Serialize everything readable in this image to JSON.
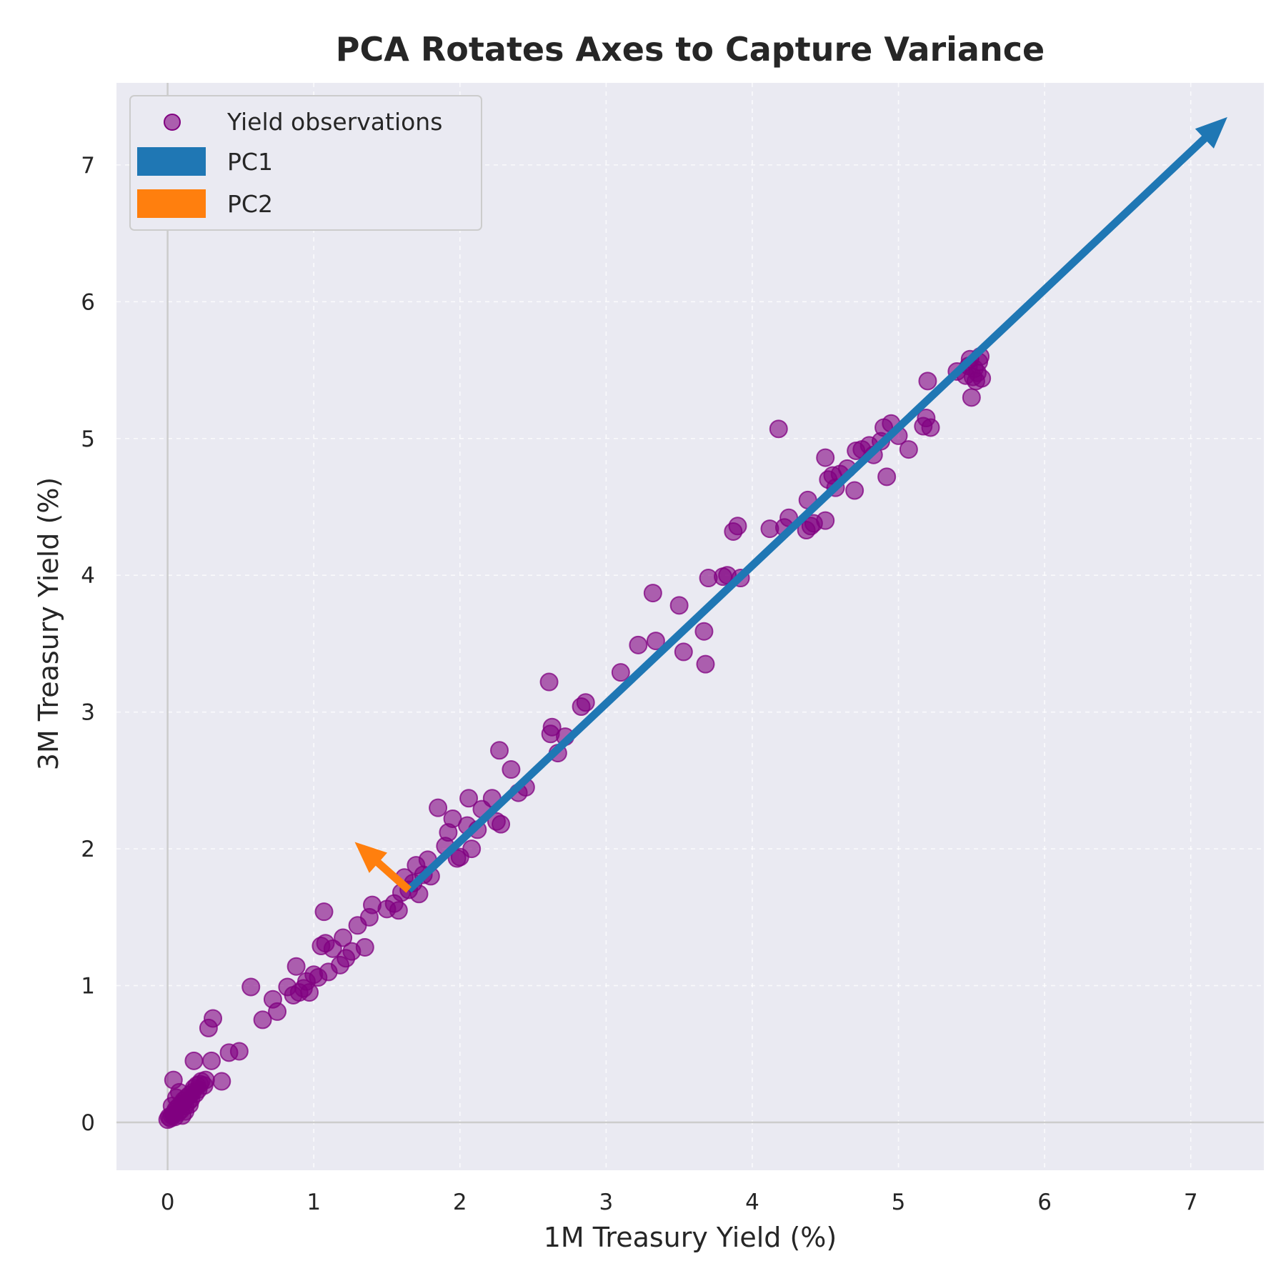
{
  "chart_data": {
    "type": "scatter",
    "title": "PCA Rotates Axes to Capture Variance",
    "xlabel": "1M Treasury Yield (%)",
    "ylabel": "3M Treasury Yield (%)",
    "xlim": [
      -0.35,
      7.5
    ],
    "ylim": [
      -0.35,
      7.6
    ],
    "xticks": [
      0,
      1,
      2,
      3,
      4,
      5,
      6,
      7
    ],
    "yticks": [
      0,
      1,
      2,
      3,
      4,
      5,
      6,
      7
    ],
    "grid": true,
    "legend_position": "top-left",
    "legend": [
      {
        "label": "Yield observations",
        "kind": "marker",
        "color": "#800080"
      },
      {
        "label": "PC1",
        "kind": "patch",
        "color": "#1f77b4"
      },
      {
        "label": "PC2",
        "kind": "patch",
        "color": "#ff7f0e"
      }
    ],
    "background_color": "#eaeaf2",
    "series": [
      {
        "name": "Yield observations",
        "kind": "scatter",
        "color": "#800080",
        "points": [
          [
            0.0,
            0.02
          ],
          [
            0.01,
            0.04
          ],
          [
            0.02,
            0.03
          ],
          [
            0.03,
            0.05
          ],
          [
            0.04,
            0.06
          ],
          [
            0.05,
            0.04
          ],
          [
            0.05,
            0.08
          ],
          [
            0.06,
            0.1
          ],
          [
            0.07,
            0.07
          ],
          [
            0.08,
            0.12
          ],
          [
            0.09,
            0.09
          ],
          [
            0.1,
            0.14
          ],
          [
            0.1,
            0.05
          ],
          [
            0.11,
            0.16
          ],
          [
            0.12,
            0.12
          ],
          [
            0.13,
            0.18
          ],
          [
            0.14,
            0.15
          ],
          [
            0.15,
            0.2
          ],
          [
            0.16,
            0.17
          ],
          [
            0.17,
            0.22
          ],
          [
            0.18,
            0.25
          ],
          [
            0.19,
            0.21
          ],
          [
            0.2,
            0.27
          ],
          [
            0.21,
            0.24
          ],
          [
            0.22,
            0.28
          ],
          [
            0.23,
            0.3
          ],
          [
            0.25,
            0.27
          ],
          [
            0.26,
            0.31
          ],
          [
            0.03,
            0.12
          ],
          [
            0.06,
            0.18
          ],
          [
            0.08,
            0.22
          ],
          [
            0.04,
            0.31
          ],
          [
            0.12,
            0.08
          ],
          [
            0.15,
            0.13
          ],
          [
            0.18,
            0.45
          ],
          [
            0.3,
            0.45
          ],
          [
            0.28,
            0.69
          ],
          [
            0.31,
            0.76
          ],
          [
            0.37,
            0.3
          ],
          [
            0.42,
            0.51
          ],
          [
            0.49,
            0.52
          ],
          [
            0.57,
            0.99
          ],
          [
            0.65,
            0.75
          ],
          [
            0.72,
            0.9
          ],
          [
            0.75,
            0.81
          ],
          [
            0.82,
            0.99
          ],
          [
            0.86,
            0.93
          ],
          [
            0.88,
            1.14
          ],
          [
            0.9,
            0.95
          ],
          [
            0.93,
            0.98
          ],
          [
            0.95,
            1.03
          ],
          [
            0.97,
            0.95
          ],
          [
            1.0,
            1.08
          ],
          [
            1.03,
            1.06
          ],
          [
            1.05,
            1.29
          ],
          [
            1.07,
            1.54
          ],
          [
            1.08,
            1.31
          ],
          [
            1.1,
            1.1
          ],
          [
            1.13,
            1.27
          ],
          [
            1.18,
            1.15
          ],
          [
            1.2,
            1.35
          ],
          [
            1.22,
            1.2
          ],
          [
            1.26,
            1.25
          ],
          [
            1.3,
            1.44
          ],
          [
            1.35,
            1.28
          ],
          [
            1.38,
            1.5
          ],
          [
            1.4,
            1.59
          ],
          [
            1.5,
            1.56
          ],
          [
            1.55,
            1.6
          ],
          [
            1.58,
            1.55
          ],
          [
            1.6,
            1.68
          ],
          [
            1.62,
            1.79
          ],
          [
            1.65,
            1.7
          ],
          [
            1.68,
            1.75
          ],
          [
            1.7,
            1.88
          ],
          [
            1.72,
            1.67
          ],
          [
            1.75,
            1.81
          ],
          [
            1.78,
            1.92
          ],
          [
            1.8,
            1.8
          ],
          [
            1.85,
            2.3
          ],
          [
            1.9,
            2.02
          ],
          [
            1.92,
            2.12
          ],
          [
            1.95,
            2.22
          ],
          [
            1.98,
            1.93
          ],
          [
            2.0,
            1.94
          ],
          [
            2.05,
            2.17
          ],
          [
            2.06,
            2.37
          ],
          [
            2.08,
            2.0
          ],
          [
            2.12,
            2.14
          ],
          [
            2.15,
            2.29
          ],
          [
            2.22,
            2.37
          ],
          [
            2.25,
            2.2
          ],
          [
            2.27,
            2.72
          ],
          [
            2.28,
            2.18
          ],
          [
            2.35,
            2.58
          ],
          [
            2.4,
            2.41
          ],
          [
            2.45,
            2.45
          ],
          [
            2.61,
            3.22
          ],
          [
            2.62,
            2.84
          ],
          [
            2.63,
            2.89
          ],
          [
            2.67,
            2.7
          ],
          [
            2.72,
            2.82
          ],
          [
            2.83,
            3.04
          ],
          [
            2.86,
            3.07
          ],
          [
            3.1,
            3.29
          ],
          [
            3.22,
            3.49
          ],
          [
            3.32,
            3.87
          ],
          [
            3.34,
            3.52
          ],
          [
            3.5,
            3.78
          ],
          [
            3.53,
            3.44
          ],
          [
            3.67,
            3.59
          ],
          [
            3.68,
            3.35
          ],
          [
            3.7,
            3.98
          ],
          [
            3.8,
            3.99
          ],
          [
            3.83,
            4.0
          ],
          [
            3.87,
            4.32
          ],
          [
            3.9,
            4.36
          ],
          [
            3.92,
            3.98
          ],
          [
            4.12,
            4.34
          ],
          [
            4.18,
            5.07
          ],
          [
            4.22,
            4.35
          ],
          [
            4.25,
            4.42
          ],
          [
            4.37,
            4.33
          ],
          [
            4.38,
            4.55
          ],
          [
            4.4,
            4.36
          ],
          [
            4.42,
            4.38
          ],
          [
            4.5,
            4.86
          ],
          [
            4.5,
            4.4
          ],
          [
            4.52,
            4.7
          ],
          [
            4.55,
            4.73
          ],
          [
            4.57,
            4.64
          ],
          [
            4.6,
            4.74
          ],
          [
            4.65,
            4.78
          ],
          [
            4.7,
            4.62
          ],
          [
            4.71,
            4.91
          ],
          [
            4.75,
            4.92
          ],
          [
            4.8,
            4.95
          ],
          [
            4.83,
            4.88
          ],
          [
            4.88,
            4.98
          ],
          [
            4.9,
            5.08
          ],
          [
            4.92,
            4.72
          ],
          [
            4.95,
            5.11
          ],
          [
            5.0,
            5.02
          ],
          [
            5.07,
            4.92
          ],
          [
            5.17,
            5.09
          ],
          [
            5.19,
            5.15
          ],
          [
            5.2,
            5.42
          ],
          [
            5.22,
            5.08
          ],
          [
            5.4,
            5.49
          ],
          [
            5.48,
            5.53
          ],
          [
            5.5,
            5.3
          ],
          [
            5.51,
            5.45
          ],
          [
            5.52,
            5.51
          ],
          [
            5.53,
            5.42
          ],
          [
            5.54,
            5.48
          ],
          [
            5.55,
            5.56
          ],
          [
            5.56,
            5.6
          ],
          [
            5.57,
            5.44
          ],
          [
            5.49,
            5.58
          ],
          [
            5.46,
            5.46
          ]
        ]
      },
      {
        "name": "PC1",
        "kind": "arrow",
        "color": "#1f77b4",
        "from": [
          1.65,
          1.7
        ],
        "to": [
          7.25,
          7.35
        ]
      },
      {
        "name": "PC2",
        "kind": "arrow",
        "color": "#ff7f0e",
        "from": [
          1.65,
          1.7
        ],
        "to": [
          1.28,
          2.05
        ]
      }
    ]
  }
}
